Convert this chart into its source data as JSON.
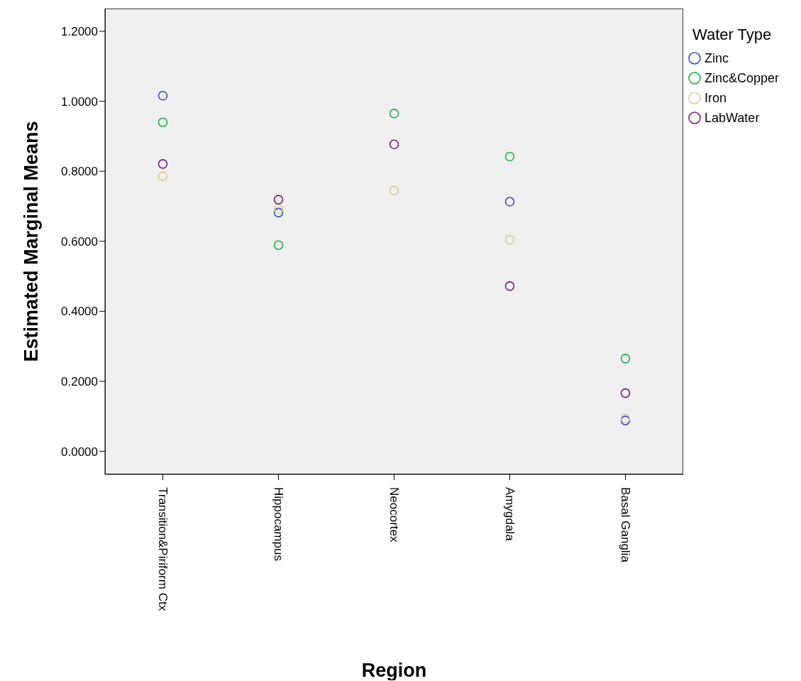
{
  "chart_data": {
    "type": "scatter",
    "xlabel": "Region",
    "ylabel": "Estimated Marginal Means",
    "legend_title": "Water Type",
    "categories": [
      "Transition&Piriform Ctx",
      "Hippocampus",
      "Neocortex",
      "Amygdala",
      "Basal Ganglia"
    ],
    "series": [
      {
        "name": "Zinc",
        "color": "#3b50a8",
        "values": [
          1.016,
          0.682,
          null,
          0.713,
          0.088
        ]
      },
      {
        "name": "Zinc&Copper",
        "color": "#22b14c",
        "values": [
          0.94,
          0.589,
          0.965,
          0.842,
          0.265
        ]
      },
      {
        "name": "Iron",
        "color": "#d9cf9a",
        "values": [
          0.786,
          0.692,
          0.745,
          0.604,
          0.094
        ]
      },
      {
        "name": "LabWater",
        "color": "#7b1e74",
        "values": [
          0.821,
          0.719,
          0.877,
          0.472,
          0.166
        ]
      }
    ],
    "ylim": [
      -0.066,
      1.265
    ],
    "yticks": [
      {
        "value": 0,
        "label": "0.0000"
      },
      {
        "value": 0.2,
        "label": "0.2000"
      },
      {
        "value": 0.4,
        "label": "0.4000"
      },
      {
        "value": 0.6,
        "label": "0.6000"
      },
      {
        "value": 0.8,
        "label": "0.8000"
      },
      {
        "value": 1,
        "label": "1.0000"
      },
      {
        "value": 1.2,
        "label": "1.2000"
      }
    ],
    "marker": "circle",
    "legend": "top right"
  }
}
